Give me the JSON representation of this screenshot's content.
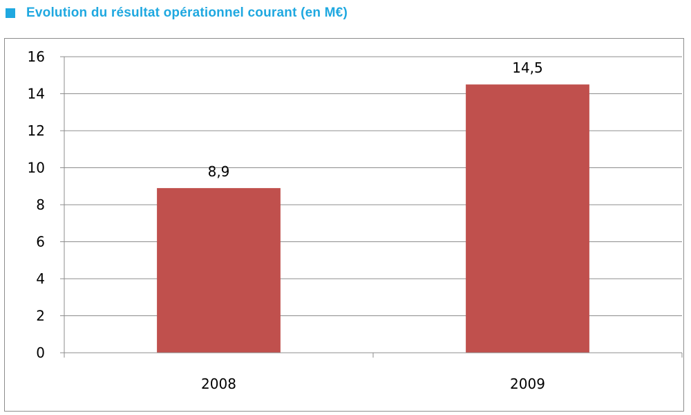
{
  "header": {
    "title": "Evolution du résultat opérationnel courant (en M€)",
    "square_icon": "square-bullet-icon",
    "accent_color": "#1fa8e0"
  },
  "chart_data": {
    "type": "bar",
    "title": "",
    "xlabel": "",
    "ylabel": "",
    "categories": [
      "2008",
      "2009"
    ],
    "values": [
      8.9,
      14.5
    ],
    "value_labels": [
      "8,9",
      "14,5"
    ],
    "ylim": [
      0,
      16
    ],
    "yticks": [
      0,
      2,
      4,
      6,
      8,
      10,
      12,
      14,
      16
    ],
    "grid": true,
    "legend": "none",
    "bar_color": "#c0504d"
  }
}
